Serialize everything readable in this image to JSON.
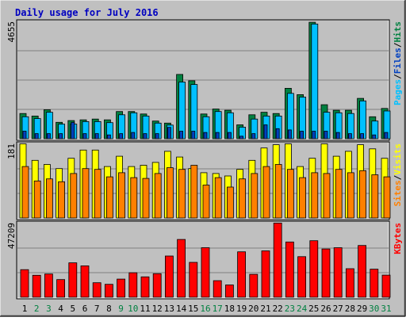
{
  "chart_data": {
    "type": "bar",
    "title": "Daily usage for July 2016",
    "days": [
      "1",
      "2",
      "3",
      "4",
      "5",
      "6",
      "7",
      "8",
      "9",
      "10",
      "11",
      "12",
      "13",
      "14",
      "15",
      "16",
      "17",
      "18",
      "19",
      "20",
      "21",
      "22",
      "23",
      "24",
      "25",
      "26",
      "27",
      "28",
      "29",
      "30",
      "31"
    ],
    "weekend_days": [
      "2",
      "3",
      "9",
      "10",
      "16",
      "17",
      "23",
      "24",
      "30",
      "31"
    ],
    "colors": {
      "background": "#c0c0c0",
      "title": "#0000c0",
      "hits": "#008040",
      "files": "#00c0ff",
      "pages": "#0040c0",
      "visits": "#ffff00",
      "sites": "#ff8000",
      "kbytes": "#ff0000",
      "weekday_label": "#000000",
      "weekend_label": "#008040"
    },
    "panels": {
      "top": {
        "max_label": "4655",
        "ymax": 4655,
        "legend": {
          "pages": "Pages",
          "files": "Files",
          "hits": "Hits",
          "sep": "/"
        },
        "series": [
          {
            "name": "Hits",
            "values": [
              1000,
              900,
              1150,
              650,
              720,
              750,
              780,
              750,
              1080,
              1080,
              980,
              700,
              620,
              2550,
              2300,
              980,
              1180,
              1130,
              550,
              950,
              1050,
              1000,
              2000,
              1750,
              4620,
              1350,
              1130,
              1130,
              1600,
              870,
              1200
            ]
          },
          {
            "name": "Files",
            "values": [
              870,
              800,
              1050,
              580,
              580,
              680,
              680,
              640,
              950,
              1030,
              900,
              620,
              540,
              2250,
              2150,
              870,
              1080,
              1030,
              460,
              780,
              900,
              900,
              1800,
              1650,
              4550,
              1050,
              1030,
              1000,
              1500,
              700,
              1100
            ]
          },
          {
            "name": "Pages",
            "values": [
              300,
              200,
              200,
              200,
              650,
              200,
              200,
              150,
              200,
              250,
              200,
              200,
              450,
              300,
              300,
              250,
              250,
              250,
              100,
              200,
              550,
              400,
              350,
              300,
              300,
              300,
              250,
              200,
              200,
              150,
              250
            ]
          }
        ]
      },
      "middle": {
        "max_label": "181",
        "ymax": 181,
        "legend": {
          "sites": "Sites",
          "visits": "Visits",
          "sep": "/"
        },
        "series": [
          {
            "name": "Visits",
            "values": [
              180,
              140,
              130,
              120,
              145,
              165,
              165,
              125,
              150,
              125,
              128,
              135,
              162,
              148,
              120,
              110,
              108,
              102,
              118,
              140,
              170,
              178,
              180,
              125,
              145,
              180,
              150,
              162,
              178,
              168,
              145
            ]
          },
          {
            "name": "Sites",
            "values": [
              125,
              90,
              95,
              88,
              108,
              120,
              118,
              100,
              110,
              98,
              96,
              108,
              122,
              118,
              128,
              80,
              98,
              75,
              95,
              108,
              125,
              130,
              118,
              98,
              110,
              108,
              118,
              110,
              115,
              105,
              100
            ]
          }
        ]
      },
      "bottom": {
        "max_label": "47209",
        "ymax": 47209,
        "legend": {
          "kbytes": "KBytes"
        },
        "series": [
          {
            "name": "KBytes",
            "values": [
              17500,
              13900,
              14700,
              11200,
              21800,
              19900,
              9200,
              8200,
              11500,
              15500,
              12900,
              14900,
              26100,
              36600,
              22100,
              31400,
              10500,
              7800,
              28800,
              14500,
              29400,
              47000,
              35000,
              25700,
              35800,
              30600,
              31400,
              18100,
              32800,
              17800,
              14000
            ]
          }
        ]
      }
    }
  }
}
